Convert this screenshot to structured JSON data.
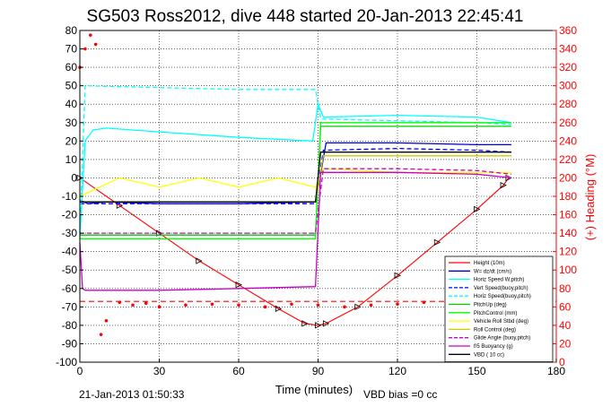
{
  "chart_data": {
    "type": "line",
    "title": "SG503 Ross2012, dive 448 started 20-Jan-2013 22:45:41",
    "xlabel": "Time (minutes)",
    "ylabel_right": "(+) Heading (°M)",
    "footer_left": "21-Jan-2013 01:50:33",
    "footer_right": "VBD bias =0 cc",
    "xlim": [
      0,
      180
    ],
    "ylim": [
      -100,
      80
    ],
    "ylim_right": [
      0,
      360
    ],
    "x_ticks": [
      0,
      30,
      60,
      90,
      120,
      150,
      180
    ],
    "y_ticks": [
      -100,
      -90,
      -80,
      -70,
      -60,
      -50,
      -40,
      -30,
      -20,
      -10,
      0,
      10,
      20,
      30,
      40,
      50,
      60,
      70,
      80
    ],
    "y_ticks_right": [
      0,
      20,
      40,
      60,
      80,
      100,
      120,
      140,
      160,
      180,
      200,
      220,
      240,
      260,
      280,
      300,
      320,
      340,
      360
    ],
    "grid": true,
    "legend_position": "bottom-right",
    "series": [
      {
        "name": "Height (10m)",
        "color": "#ff0000",
        "style": "line-markers",
        "x": [
          0,
          15,
          30,
          45,
          60,
          75,
          85,
          90,
          93,
          105,
          120,
          135,
          150,
          160,
          162
        ],
        "y": [
          0,
          -15,
          -30,
          -45,
          -58,
          -71,
          -79,
          -80,
          -79,
          -70,
          -53,
          -35,
          -17,
          -4,
          0
        ]
      },
      {
        "name": "W= dz/dt (cm/s)",
        "color": "#0000cc",
        "style": "line",
        "x": [
          0,
          3,
          10,
          30,
          60,
          89,
          91,
          93,
          120,
          150,
          163
        ],
        "y": [
          -12,
          -14,
          -13,
          -14,
          -14,
          -13,
          2,
          19,
          19,
          18,
          18
        ]
      },
      {
        "name": "Horiz Speed W,pitch)",
        "color": "#00ffff",
        "style": "line",
        "x": [
          0,
          2,
          5,
          10,
          30,
          60,
          88,
          90,
          92,
          120,
          150,
          163
        ],
        "y": [
          -33,
          20,
          26,
          27,
          25,
          22,
          20,
          40,
          33,
          34,
          33,
          30
        ]
      },
      {
        "name": "Vert Speed(buoy,pitch)",
        "color": "#0000ff",
        "style": "dashed",
        "x": [
          0,
          5,
          30,
          60,
          89,
          92,
          120,
          150,
          163
        ],
        "y": [
          -14,
          -14,
          -14,
          -14,
          -14,
          15,
          16,
          15,
          14
        ]
      },
      {
        "name": "Horiz Speed(buoy,pitch)",
        "color": "#00ffff",
        "style": "dashed",
        "x": [
          0,
          2,
          30,
          60,
          89,
          91,
          120,
          150,
          163
        ],
        "y": [
          -30,
          50,
          49,
          48,
          48,
          32,
          31,
          30,
          29
        ]
      },
      {
        "name": "PitchUp (deg)",
        "color": "#00cc00",
        "style": "line",
        "x": [
          0,
          3,
          30,
          60,
          89,
          91,
          163
        ],
        "y": [
          -31,
          -31,
          -31,
          -31,
          -31,
          28,
          28
        ]
      },
      {
        "name": "PitchControl (mm)",
        "color": "#00ff00",
        "style": "line",
        "x": [
          0,
          3,
          30,
          60,
          89,
          91,
          163
        ],
        "y": [
          -33,
          -33,
          -33,
          -33,
          -33,
          30,
          30
        ]
      },
      {
        "name": "Vehicle Roll Stbd (deg)",
        "color": "#ffff00",
        "style": "line",
        "x": [
          0,
          15,
          30,
          45,
          60,
          75,
          89,
          92,
          120,
          150,
          163
        ],
        "y": [
          -10,
          0,
          -5,
          0,
          -5,
          0,
          -5,
          5,
          3,
          3,
          3
        ]
      },
      {
        "name": "Roll Control (deg)",
        "color": "#cccc00",
        "style": "line",
        "x": [
          0,
          30,
          60,
          89,
          92,
          163
        ],
        "y": [
          -13,
          -13,
          -13,
          -13,
          12,
          12
        ]
      },
      {
        "name": "Glide Angle (buoy,pitch)",
        "color": "#cc00cc",
        "style": "dashed",
        "x": [
          0,
          3,
          30,
          60,
          89,
          92,
          120,
          150,
          163
        ],
        "y": [
          -30,
          -30,
          -30,
          -30,
          -30,
          5,
          5,
          4,
          2
        ]
      },
      {
        "name": "f/5 Buoyancy (g)",
        "color": "#cc00cc",
        "style": "line",
        "x": [
          0,
          1,
          2,
          30,
          60,
          89,
          91,
          120,
          150,
          163
        ],
        "y": [
          -35,
          -60,
          -61,
          -61,
          -60,
          -59,
          3,
          3,
          2,
          0
        ]
      },
      {
        "name": "VBD ( 10 cc)",
        "color": "#000000",
        "style": "line",
        "x": [
          0,
          2,
          30,
          60,
          89,
          91,
          163
        ],
        "y": [
          -13,
          -13,
          -13,
          -13,
          -13,
          14,
          14
        ]
      },
      {
        "name": "Heading",
        "color": "#ff0000",
        "style": "markers-right-axis",
        "x": [
          0,
          2,
          4,
          6,
          8,
          10,
          15,
          20,
          25,
          30,
          40,
          50,
          60,
          70,
          80,
          90,
          100,
          110,
          120,
          130,
          140
        ],
        "y": [
          320,
          340,
          355,
          345,
          30,
          45,
          65,
          62,
          64,
          60,
          62,
          63,
          62,
          60,
          63,
          62,
          60,
          62,
          63,
          65,
          62
        ]
      }
    ],
    "reference_lines": [
      {
        "color": "#ff0000",
        "style": "dashed",
        "y": -67
      }
    ]
  }
}
